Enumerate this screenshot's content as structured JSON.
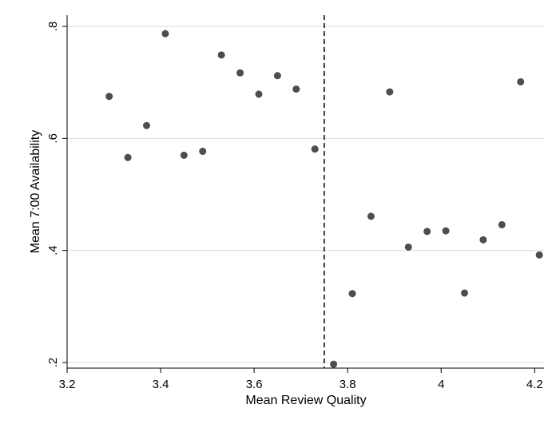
{
  "chart_data": {
    "type": "scatter",
    "xlabel": "Mean Review Quality",
    "ylabel": "Mean 7:00 Availability",
    "xlim": [
      3.2,
      4.22
    ],
    "ylim": [
      0.19,
      0.82
    ],
    "x_ticks": [
      3.2,
      3.4,
      3.6,
      3.8,
      4.0,
      4.2
    ],
    "x_tick_labels": [
      "3.2",
      "3.4",
      "3.6",
      "3.8",
      "4",
      "4.2"
    ],
    "y_ticks": [
      0.2,
      0.4,
      0.6,
      0.8
    ],
    "y_tick_labels": [
      ".2",
      ".4",
      ".6",
      ".8"
    ],
    "grid": "horizontal",
    "cutoff_x": 3.75,
    "colors": {
      "point": "#4d4d4d",
      "grid": "#dcdcdc",
      "cutoff_line": "#000000"
    },
    "points": [
      {
        "x": 3.29,
        "y": 0.675
      },
      {
        "x": 3.33,
        "y": 0.566
      },
      {
        "x": 3.37,
        "y": 0.623
      },
      {
        "x": 3.41,
        "y": 0.787
      },
      {
        "x": 3.45,
        "y": 0.57
      },
      {
        "x": 3.49,
        "y": 0.577
      },
      {
        "x": 3.53,
        "y": 0.749
      },
      {
        "x": 3.57,
        "y": 0.717
      },
      {
        "x": 3.61,
        "y": 0.679
      },
      {
        "x": 3.65,
        "y": 0.712
      },
      {
        "x": 3.69,
        "y": 0.688
      },
      {
        "x": 3.73,
        "y": 0.581
      },
      {
        "x": 3.77,
        "y": 0.197
      },
      {
        "x": 3.81,
        "y": 0.323
      },
      {
        "x": 3.85,
        "y": 0.461
      },
      {
        "x": 3.89,
        "y": 0.683
      },
      {
        "x": 3.93,
        "y": 0.406
      },
      {
        "x": 3.97,
        "y": 0.434
      },
      {
        "x": 4.01,
        "y": 0.435
      },
      {
        "x": 4.05,
        "y": 0.324
      },
      {
        "x": 4.09,
        "y": 0.419
      },
      {
        "x": 4.13,
        "y": 0.446
      },
      {
        "x": 4.17,
        "y": 0.701
      },
      {
        "x": 4.21,
        "y": 0.392
      }
    ]
  }
}
